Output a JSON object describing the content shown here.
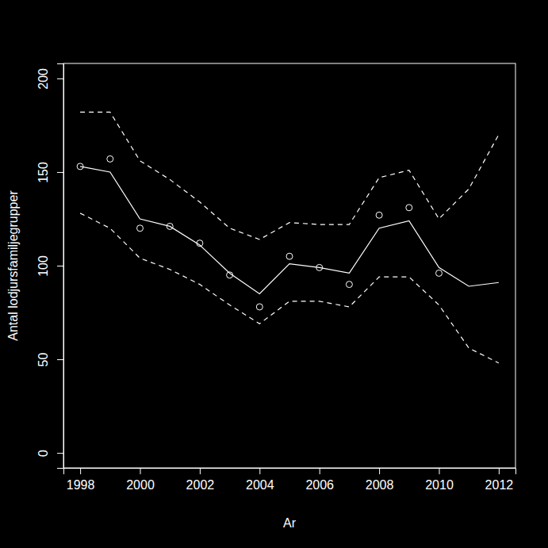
{
  "chart_data": {
    "type": "line",
    "x_label": "Ar",
    "y_label": "Antal lodjursfamiljegrupper",
    "x": [
      1998,
      1999,
      2000,
      2001,
      2002,
      2003,
      2004,
      2005,
      2006,
      2007,
      2008,
      2009,
      2010,
      2011,
      2012
    ],
    "series": [
      {
        "type": "line",
        "color": "#ffffff",
        "line_style": "solid",
        "values": [
          153,
          150,
          125,
          121,
          111,
          96,
          85,
          101,
          99,
          96,
          120,
          124,
          99,
          89,
          91
        ]
      },
      {
        "type": "line",
        "color": "#ffffff",
        "line_style": "dashed",
        "values": [
          182,
          182,
          156,
          146,
          134,
          120,
          114,
          123,
          122,
          122,
          147,
          151,
          125,
          141,
          170
        ]
      },
      {
        "type": "line",
        "color": "#ffffff",
        "line_style": "dashed",
        "values": [
          128,
          120,
          104,
          98,
          90,
          79,
          69,
          81,
          81,
          78,
          94,
          94,
          79,
          56,
          48
        ]
      },
      {
        "type": "scatter",
        "color": "#ffffff",
        "marker": "circle",
        "values": [
          153,
          157,
          120,
          121,
          112,
          95,
          78,
          105,
          99,
          90,
          127,
          131,
          96,
          null,
          null
        ]
      }
    ],
    "xlim": [
      1997.44,
      2012.56
    ],
    "xticks": [
      1998,
      2000,
      2002,
      2004,
      2006,
      2008,
      2010,
      2012
    ],
    "ylim": [
      -8,
      208
    ],
    "yticks": [
      0,
      50,
      100,
      150,
      200
    ]
  }
}
